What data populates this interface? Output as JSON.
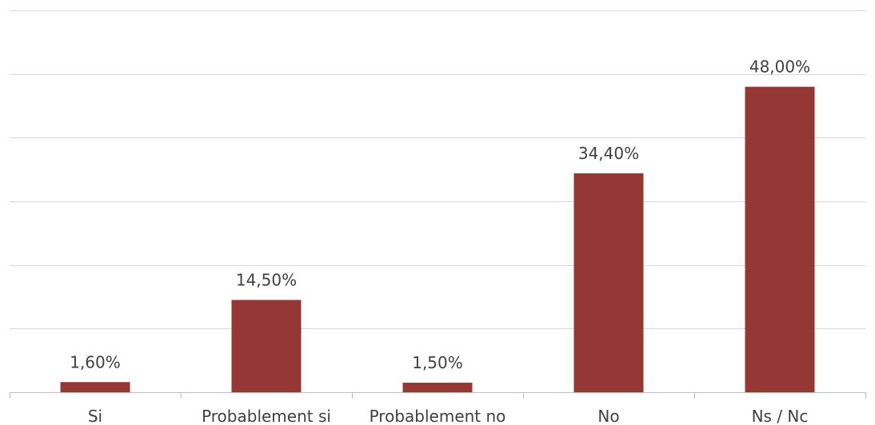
{
  "chart_data": {
    "type": "bar",
    "categories": [
      "Si",
      "Probablement si",
      "Probablement no",
      "No",
      "Ns / Nc"
    ],
    "values": [
      1.6,
      14.5,
      1.5,
      34.4,
      48.0
    ],
    "value_labels": [
      "1,60%",
      "14,50%",
      "1,50%",
      "34,40%",
      "48,00%"
    ],
    "ylim": [
      0,
      60
    ],
    "gridlines": true,
    "legend": "none",
    "bar_color": "#953735",
    "title": "",
    "xlabel": "",
    "ylabel": ""
  }
}
